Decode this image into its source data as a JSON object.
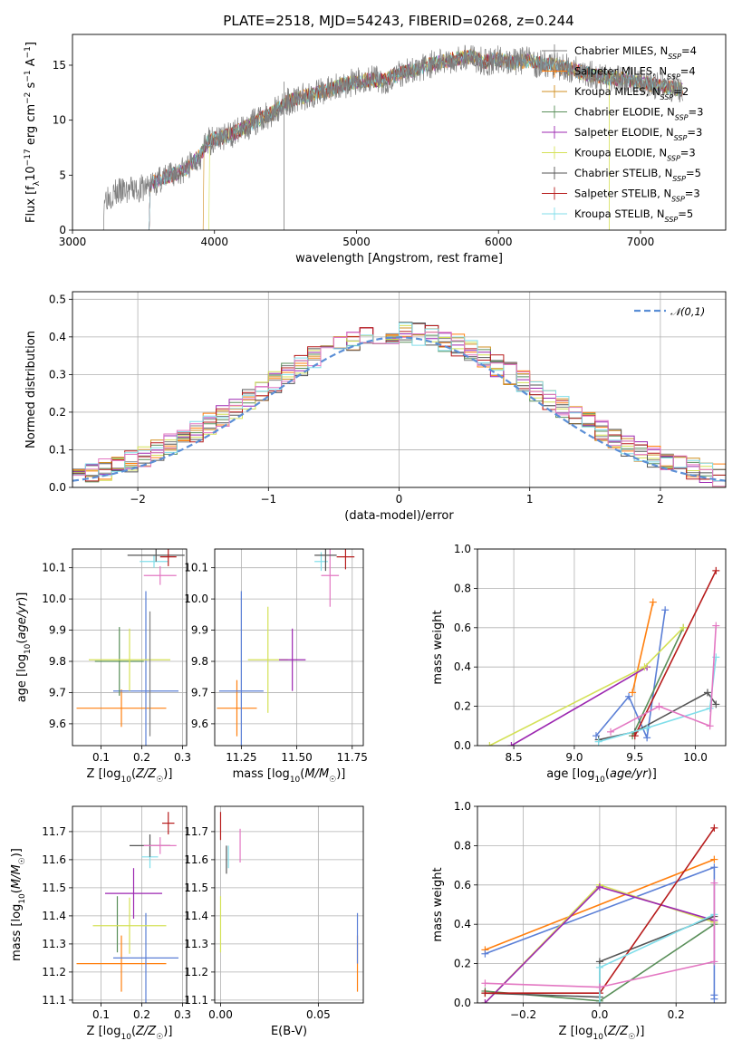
{
  "title": "PLATE=2518, MJD=54243, FIBERID=0268, z=0.244",
  "colors": {
    "chabrier_miles": "#7f7f7f",
    "salpeter_miles": "#ff7f0e",
    "kroupa_miles": "#d08f20",
    "chabrier_elodie": "#5a8f5a",
    "salpeter_elodie": "#9c27b0",
    "kroupa_elodie": "#d4e157",
    "chabrier_stelib": "#555555",
    "salpeter_stelib": "#b71c1c",
    "kroupa_stelib": "#80deea",
    "pink": "#e377c2",
    "blue": "#5b7fd6",
    "normal_line": "#5b8fd6"
  },
  "chart_data": [
    {
      "id": "spectrum",
      "type": "line",
      "title": "PLATE=2518, MJD=54243, FIBERID=0268, z=0.244",
      "xlabel": "wavelength [Angstrom, rest frame]",
      "ylabel": "Flux [f_λ 10^-17 erg cm^-2 s^-1 A^-1]",
      "xlim": [
        3000,
        7600
      ],
      "ylim": [
        0,
        17.8
      ],
      "xticks": [
        "3000",
        "4000",
        "5000",
        "6000",
        "7000"
      ],
      "yticks": [
        "0",
        "5",
        "10",
        "15"
      ],
      "legend_position": "right",
      "legend": [
        {
          "label": "Chabrier MILES, N_SSP=4",
          "color_key": "chabrier_miles"
        },
        {
          "label": "Salpeter MILES, N_SSP=4",
          "color_key": "salpeter_miles"
        },
        {
          "label": "Kroupa MILES, N_SSP=2",
          "color_key": "kroupa_miles"
        },
        {
          "label": "Chabrier ELODIE, N_SSP=3",
          "color_key": "chabrier_elodie"
        },
        {
          "label": "Salpeter ELODIE, N_SSP=3",
          "color_key": "salpeter_elodie"
        },
        {
          "label": "Kroupa ELODIE, N_SSP=3",
          "color_key": "kroupa_elodie"
        },
        {
          "label": "Chabrier STELIB, N_SSP=5",
          "color_key": "chabrier_stelib"
        },
        {
          "label": "Salpeter STELIB, N_SSP=3",
          "color_key": "salpeter_stelib"
        },
        {
          "label": "Kroupa STELIB, N_SSP=5",
          "color_key": "kroupa_stelib"
        }
      ],
      "continuum": {
        "x": [
          3200,
          3220,
          3300,
          3400,
          3500,
          3600,
          3700,
          3800,
          3900,
          3950,
          4000,
          4100,
          4200,
          4300,
          4400,
          4500,
          4600,
          4700,
          4800,
          4900,
          5000,
          5100,
          5200,
          5300,
          5400,
          5500,
          5600,
          5700,
          5800,
          5900,
          6000,
          6100,
          6200,
          6300,
          6400,
          6500,
          6600,
          6700,
          6800,
          6900,
          7000,
          7100,
          7200,
          7300
        ],
        "y": [
          0,
          3.0,
          3.4,
          3.6,
          3.8,
          4.5,
          5.0,
          5.6,
          6.8,
          8.0,
          8.3,
          8.6,
          9.2,
          10.0,
          10.6,
          11.6,
          12.0,
          12.4,
          12.7,
          13.2,
          13.5,
          13.7,
          13.6,
          14.3,
          14.5,
          15.0,
          15.3,
          15.6,
          15.8,
          15.3,
          15.5,
          15.2,
          15.4,
          15.1,
          15.0,
          14.7,
          14.3,
          14.0,
          13.8,
          13.7,
          13.4,
          13.2,
          13.0,
          12.8
        ]
      },
      "model_start_x": [
        3540,
        3540,
        3920,
        3540,
        3540,
        3960,
        3540,
        3540,
        3540
      ],
      "cut_lines": [
        {
          "x": 4490,
          "y_top": 13.5,
          "color_key": "chabrier_miles"
        },
        {
          "x": 6780,
          "y_top": 13.5,
          "color_key": "kroupa_elodie"
        }
      ]
    },
    {
      "id": "residuals",
      "type": "line",
      "xlabel": "(data-model)/error",
      "ylabel": "Normed distribution",
      "xlim": [
        -2.5,
        2.5
      ],
      "ylim": [
        0,
        0.52
      ],
      "xticks": [
        "−2",
        "−1",
        "0",
        "1",
        "2"
      ],
      "yticks": [
        "0.0",
        "0.1",
        "0.2",
        "0.3",
        "0.4",
        "0.5"
      ],
      "grid": true,
      "legend_position": "top-right",
      "legend": [
        {
          "label": "𝒩(0,1)",
          "color_key": "normal_line",
          "style": "dashed"
        }
      ],
      "bin_width": 0.1,
      "histograms": [
        "chabrier_miles",
        "salpeter_miles",
        "kroupa_miles",
        "chabrier_elodie",
        "salpeter_elodie",
        "kroupa_elodie",
        "chabrier_stelib",
        "salpeter_stelib",
        "kroupa_stelib",
        "pink"
      ],
      "bin_edges": [
        -2.5,
        2.5
      ]
    },
    {
      "id": "age_vs_Z",
      "type": "scatter",
      "xlabel": "Z [log10(Z/Z☉)]",
      "ylabel": "age [log10(age/yr)]",
      "xlim": [
        0.03,
        0.31
      ],
      "ylim": [
        9.53,
        10.16
      ],
      "xticks": [
        "0.1",
        "0.2",
        "0.3"
      ],
      "yticks": [
        "9.6",
        "9.7",
        "9.8",
        "9.9",
        "10.0",
        "10.1"
      ],
      "grid": true,
      "points": [
        {
          "color_key": "salpeter_miles",
          "x": 0.15,
          "xerr": 0.11,
          "y": 9.65,
          "yerr": 0.06
        },
        {
          "color_key": "blue",
          "x": 0.21,
          "xerr": 0.08,
          "y": 9.705,
          "yerr": 0.32
        },
        {
          "color_key": "chabrier_elodie",
          "x": 0.145,
          "xerr": 0.06,
          "y": 9.8,
          "yerr": 0.11
        },
        {
          "color_key": "kroupa_elodie",
          "x": 0.17,
          "xerr": 0.1,
          "y": 9.805,
          "yerr": 0.1
        },
        {
          "color_key": "chabrier_miles",
          "x": 0.22,
          "xerr": 0.0,
          "y": 9.76,
          "yerr": 0.2
        },
        {
          "color_key": "pink",
          "x": 0.245,
          "xerr": 0.04,
          "y": 10.075,
          "yerr": 0.03
        },
        {
          "color_key": "kroupa_stelib",
          "x": 0.23,
          "xerr": 0.035,
          "y": 10.12,
          "yerr": 0.02
        },
        {
          "color_key": "chabrier_stelib",
          "x": 0.235,
          "xerr": 0.07,
          "y": 10.14,
          "yerr": 0.02
        },
        {
          "color_key": "salpeter_stelib",
          "x": 0.265,
          "xerr": 0.02,
          "y": 10.135,
          "yerr": 0.03
        }
      ]
    },
    {
      "id": "age_vs_mass",
      "type": "scatter",
      "xlabel": "mass [log10(M/M☉)]",
      "ylabel": "",
      "xlim": [
        11.13,
        11.8
      ],
      "ylim": [
        9.53,
        10.16
      ],
      "xticks": [
        "11.25",
        "11.50",
        "11.75"
      ],
      "yticks": [
        "9.6",
        "9.7",
        "9.8",
        "9.9",
        "10.0",
        "10.1"
      ],
      "grid": true,
      "points": [
        {
          "color_key": "salpeter_miles",
          "x": 11.23,
          "xerr": 0.09,
          "y": 9.65,
          "yerr": 0.09
        },
        {
          "color_key": "blue",
          "x": 11.25,
          "xerr": 0.1,
          "y": 9.705,
          "yerr": 0.32
        },
        {
          "color_key": "kroupa_elodie",
          "x": 11.37,
          "xerr": 0.09,
          "y": 9.805,
          "yerr": 0.17
        },
        {
          "color_key": "salpeter_elodie",
          "x": 11.48,
          "xerr": 0.06,
          "y": 9.805,
          "yerr": 0.1
        },
        {
          "color_key": "pink",
          "x": 11.65,
          "xerr": 0.04,
          "y": 10.075,
          "yerr": 0.1
        },
        {
          "color_key": "kroupa_stelib",
          "x": 11.61,
          "xerr": 0.03,
          "y": 10.12,
          "yerr": 0.03
        },
        {
          "color_key": "chabrier_stelib",
          "x": 11.63,
          "xerr": 0.05,
          "y": 10.14,
          "yerr": 0.05
        },
        {
          "color_key": "salpeter_stelib",
          "x": 11.72,
          "xerr": 0.04,
          "y": 10.135,
          "yerr": 0.04
        }
      ]
    },
    {
      "id": "massweight_vs_age",
      "type": "line",
      "xlabel": "age [log10(age/yr)]",
      "ylabel": "mass weight",
      "xlim": [
        8.2,
        10.25
      ],
      "ylim": [
        0,
        1.0
      ],
      "xticks": [
        "8.5",
        "9.0",
        "9.5",
        "10.0"
      ],
      "yticks": [
        "0.0",
        "0.2",
        "0.4",
        "0.6",
        "0.8",
        "1.0"
      ],
      "grid": true,
      "series": [
        {
          "color_key": "salpeter_miles",
          "x": [
            9.48,
            9.65
          ],
          "y": [
            0.27,
            0.73
          ]
        },
        {
          "color_key": "blue",
          "x": [
            9.18,
            9.45,
            9.6,
            9.75
          ],
          "y": [
            0.05,
            0.25,
            0.04,
            0.69
          ]
        },
        {
          "color_key": "chabrier_elodie",
          "x": [
            9.48,
            9.9
          ],
          "y": [
            0.05,
            0.6
          ]
        },
        {
          "color_key": "salpeter_elodie",
          "x": [
            8.48,
            9.6
          ],
          "y": [
            0.0,
            0.4
          ]
        },
        {
          "color_key": "kroupa_elodie",
          "x": [
            8.3,
            9.58,
            9.9
          ],
          "y": [
            0.0,
            0.4,
            0.6
          ]
        },
        {
          "color_key": "chabrier_stelib",
          "x": [
            9.2,
            9.5,
            10.1,
            10.17
          ],
          "y": [
            0.03,
            0.07,
            0.27,
            0.21
          ]
        },
        {
          "color_key": "salpeter_stelib",
          "x": [
            9.5,
            10.17
          ],
          "y": [
            0.05,
            0.89
          ]
        },
        {
          "color_key": "kroupa_stelib",
          "x": [
            9.2,
            9.6,
            10.12,
            10.17
          ],
          "y": [
            0.02,
            0.09,
            0.19,
            0.45
          ]
        },
        {
          "color_key": "pink",
          "x": [
            9.3,
            9.7,
            10.12,
            10.17
          ],
          "y": [
            0.07,
            0.2,
            0.1,
            0.61
          ]
        }
      ]
    },
    {
      "id": "mass_vs_Z",
      "type": "scatter",
      "xlabel": "Z [log10(Z/Z☉)]",
      "ylabel": "mass [log10(M/M☉)]",
      "xlim": [
        0.03,
        0.31
      ],
      "ylim": [
        11.09,
        11.79
      ],
      "xticks": [
        "0.1",
        "0.2",
        "0.3"
      ],
      "yticks": [
        "11.1",
        "11.2",
        "11.3",
        "11.4",
        "11.5",
        "11.6",
        "11.7"
      ],
      "grid": true,
      "points": [
        {
          "color_key": "salpeter_miles",
          "x": 0.15,
          "xerr": 0.11,
          "y": 11.23,
          "yerr": 0.1
        },
        {
          "color_key": "blue",
          "x": 0.21,
          "xerr": 0.08,
          "y": 11.25,
          "yerr": 0.16
        },
        {
          "color_key": "chabrier_elodie",
          "x": 0.14,
          "xerr": 0.0,
          "y": 11.37,
          "yerr": 0.1
        },
        {
          "color_key": "kroupa_elodie",
          "x": 0.17,
          "xerr": 0.09,
          "y": 11.365,
          "yerr": 0.1
        },
        {
          "color_key": "salpeter_elodie",
          "x": 0.18,
          "xerr": 0.07,
          "y": 11.48,
          "yerr": 0.09
        },
        {
          "color_key": "kroupa_stelib",
          "x": 0.22,
          "xerr": 0.02,
          "y": 11.61,
          "yerr": 0.04
        },
        {
          "color_key": "chabrier_stelib",
          "x": 0.22,
          "xerr": 0.05,
          "y": 11.65,
          "yerr": 0.04
        },
        {
          "color_key": "pink",
          "x": 0.245,
          "xerr": 0.04,
          "y": 11.65,
          "yerr": 0.03
        },
        {
          "color_key": "salpeter_stelib",
          "x": 0.265,
          "xerr": 0.015,
          "y": 11.73,
          "yerr": 0.04
        }
      ]
    },
    {
      "id": "mass_vs_ebv",
      "type": "scatter",
      "xlabel": "E(B-V)",
      "ylabel": "",
      "xlim": [
        -0.003,
        0.073
      ],
      "ylim": [
        11.09,
        11.79
      ],
      "xticks": [
        "0.00",
        "0.05"
      ],
      "yticks": [
        "11.1",
        "11.2",
        "11.3",
        "11.4",
        "11.5",
        "11.6",
        "11.7"
      ],
      "grid": true,
      "points": [
        {
          "color_key": "salpeter_stelib",
          "x": 0.0,
          "xerr": 0,
          "y": 11.72,
          "yerr": 0.05
        },
        {
          "color_key": "pink",
          "x": 0.01,
          "xerr": 0,
          "y": 11.65,
          "yerr": 0.06
        },
        {
          "color_key": "kroupa_stelib",
          "x": 0.004,
          "xerr": 0,
          "y": 11.61,
          "yerr": 0.04
        },
        {
          "color_key": "chabrier_stelib",
          "x": 0.003,
          "xerr": 0,
          "y": 11.6,
          "yerr": 0.05
        },
        {
          "color_key": "kroupa_elodie",
          "x": 0.0,
          "xerr": 0,
          "y": 11.37,
          "yerr": 0.1
        },
        {
          "color_key": "salpeter_miles",
          "x": 0.07,
          "xerr": 0,
          "y": 11.23,
          "yerr": 0.1
        },
        {
          "color_key": "blue",
          "x": 0.07,
          "xerr": 0,
          "y": 11.32,
          "yerr": 0.09
        }
      ]
    },
    {
      "id": "massweight_vs_Z",
      "type": "line",
      "xlabel": "Z [log10(Z/Z☉)]",
      "ylabel": "mass weight",
      "xlim": [
        -0.32,
        0.33
      ],
      "ylim": [
        0,
        1.0
      ],
      "xticks": [
        "−0.2",
        "0.0",
        "0.2"
      ],
      "yticks": [
        "0.0",
        "0.2",
        "0.4",
        "0.6",
        "0.8",
        "1.0"
      ],
      "grid": true,
      "series": [
        {
          "color_key": "salpeter_miles",
          "x": [
            -0.3,
            0.3
          ],
          "y": [
            0.27,
            0.73
          ]
        },
        {
          "color_key": "blue",
          "x": [
            -0.3,
            0.3,
            0.3,
            0.3
          ],
          "y": [
            0.25,
            0.69,
            0.04,
            0.02
          ]
        },
        {
          "color_key": "chabrier_elodie",
          "x": [
            -0.3,
            0.0,
            0.3
          ],
          "y": [
            0.06,
            0.01,
            0.4
          ]
        },
        {
          "color_key": "kroupa_elodie",
          "x": [
            -0.3,
            0.0,
            0.3
          ],
          "y": [
            0.0,
            0.6,
            0.41
          ]
        },
        {
          "color_key": "salpeter_elodie",
          "x": [
            -0.3,
            0.0,
            0.3
          ],
          "y": [
            0.0,
            0.59,
            0.42
          ]
        },
        {
          "color_key": "chabrier_stelib",
          "x": [
            -0.3,
            0.0,
            0.0,
            0.3
          ],
          "y": [
            0.05,
            0.03,
            0.21,
            0.44
          ]
        },
        {
          "color_key": "salpeter_stelib",
          "x": [
            -0.3,
            0.0,
            0.3
          ],
          "y": [
            0.05,
            0.05,
            0.89
          ]
        },
        {
          "color_key": "kroupa_stelib",
          "x": [
            0.0,
            0.0,
            0.3
          ],
          "y": [
            0.0,
            0.18,
            0.45
          ]
        },
        {
          "color_key": "pink",
          "x": [
            -0.3,
            0.0,
            0.3,
            0.3
          ],
          "y": [
            0.1,
            0.08,
            0.21,
            0.61
          ]
        }
      ]
    }
  ]
}
